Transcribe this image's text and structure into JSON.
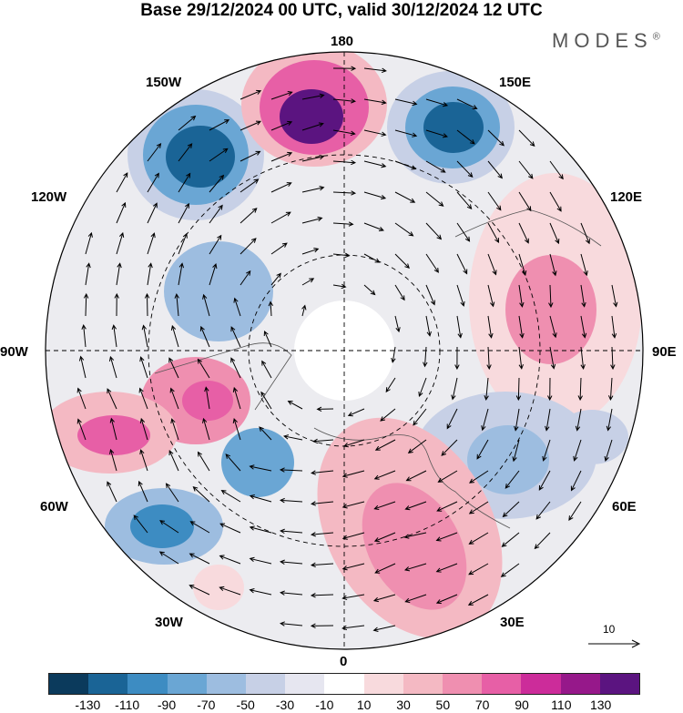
{
  "title": "Base 29/12/2024 00 UTC, valid 30/12/2024 12 UTC",
  "brand": "MODES",
  "brand_mark": "®",
  "longitude_labels": {
    "lon_180": "180",
    "lon_150w": "150W",
    "lon_150e": "150E",
    "lon_120w": "120W",
    "lon_120e": "120E",
    "lon_90w": "90W",
    "lon_90e": "90E",
    "lon_60w": "60W",
    "lon_60e": "60E",
    "lon_30w": "30W",
    "lon_30e": "30E",
    "lon_0": "0"
  },
  "reference_vector": {
    "label": "10"
  },
  "colorbar": {
    "colors": [
      "#0b3a5c",
      "#1a6496",
      "#3d8cc2",
      "#6aa6d4",
      "#9dbde0",
      "#c7d0e6",
      "#e6e6f0",
      "#ffffff",
      "#f8dadd",
      "#f4b9c3",
      "#ef8fb0",
      "#e75fa6",
      "#cc2c9a",
      "#96188a",
      "#5b1480"
    ],
    "ticks": [
      "-130",
      "-110",
      "-90",
      "-70",
      "-50",
      "-30",
      "-10",
      "10",
      "30",
      "50",
      "70",
      "90",
      "110",
      "130"
    ]
  },
  "anomaly_centers": [
    {
      "id": "low-150w",
      "sign": "negative",
      "level": -110
    },
    {
      "id": "high-170w",
      "sign": "positive",
      "level": 120
    },
    {
      "id": "low-160e",
      "sign": "negative",
      "level": -110
    },
    {
      "id": "high-110e",
      "sign": "positive",
      "level": 60
    },
    {
      "id": "low-110w",
      "sign": "negative",
      "level": -50
    },
    {
      "id": "high-80w",
      "sign": "positive",
      "level": 80
    },
    {
      "id": "high-60w",
      "sign": "positive",
      "level": 70
    },
    {
      "id": "low-55w",
      "sign": "negative",
      "level": -60
    },
    {
      "id": "low-45w",
      "sign": "negative",
      "level": -70
    },
    {
      "id": "low-50e",
      "sign": "negative",
      "level": -50
    },
    {
      "id": "high-20e",
      "sign": "positive",
      "level": 60
    },
    {
      "id": "high-40w",
      "sign": "positive",
      "level": 30
    }
  ]
}
